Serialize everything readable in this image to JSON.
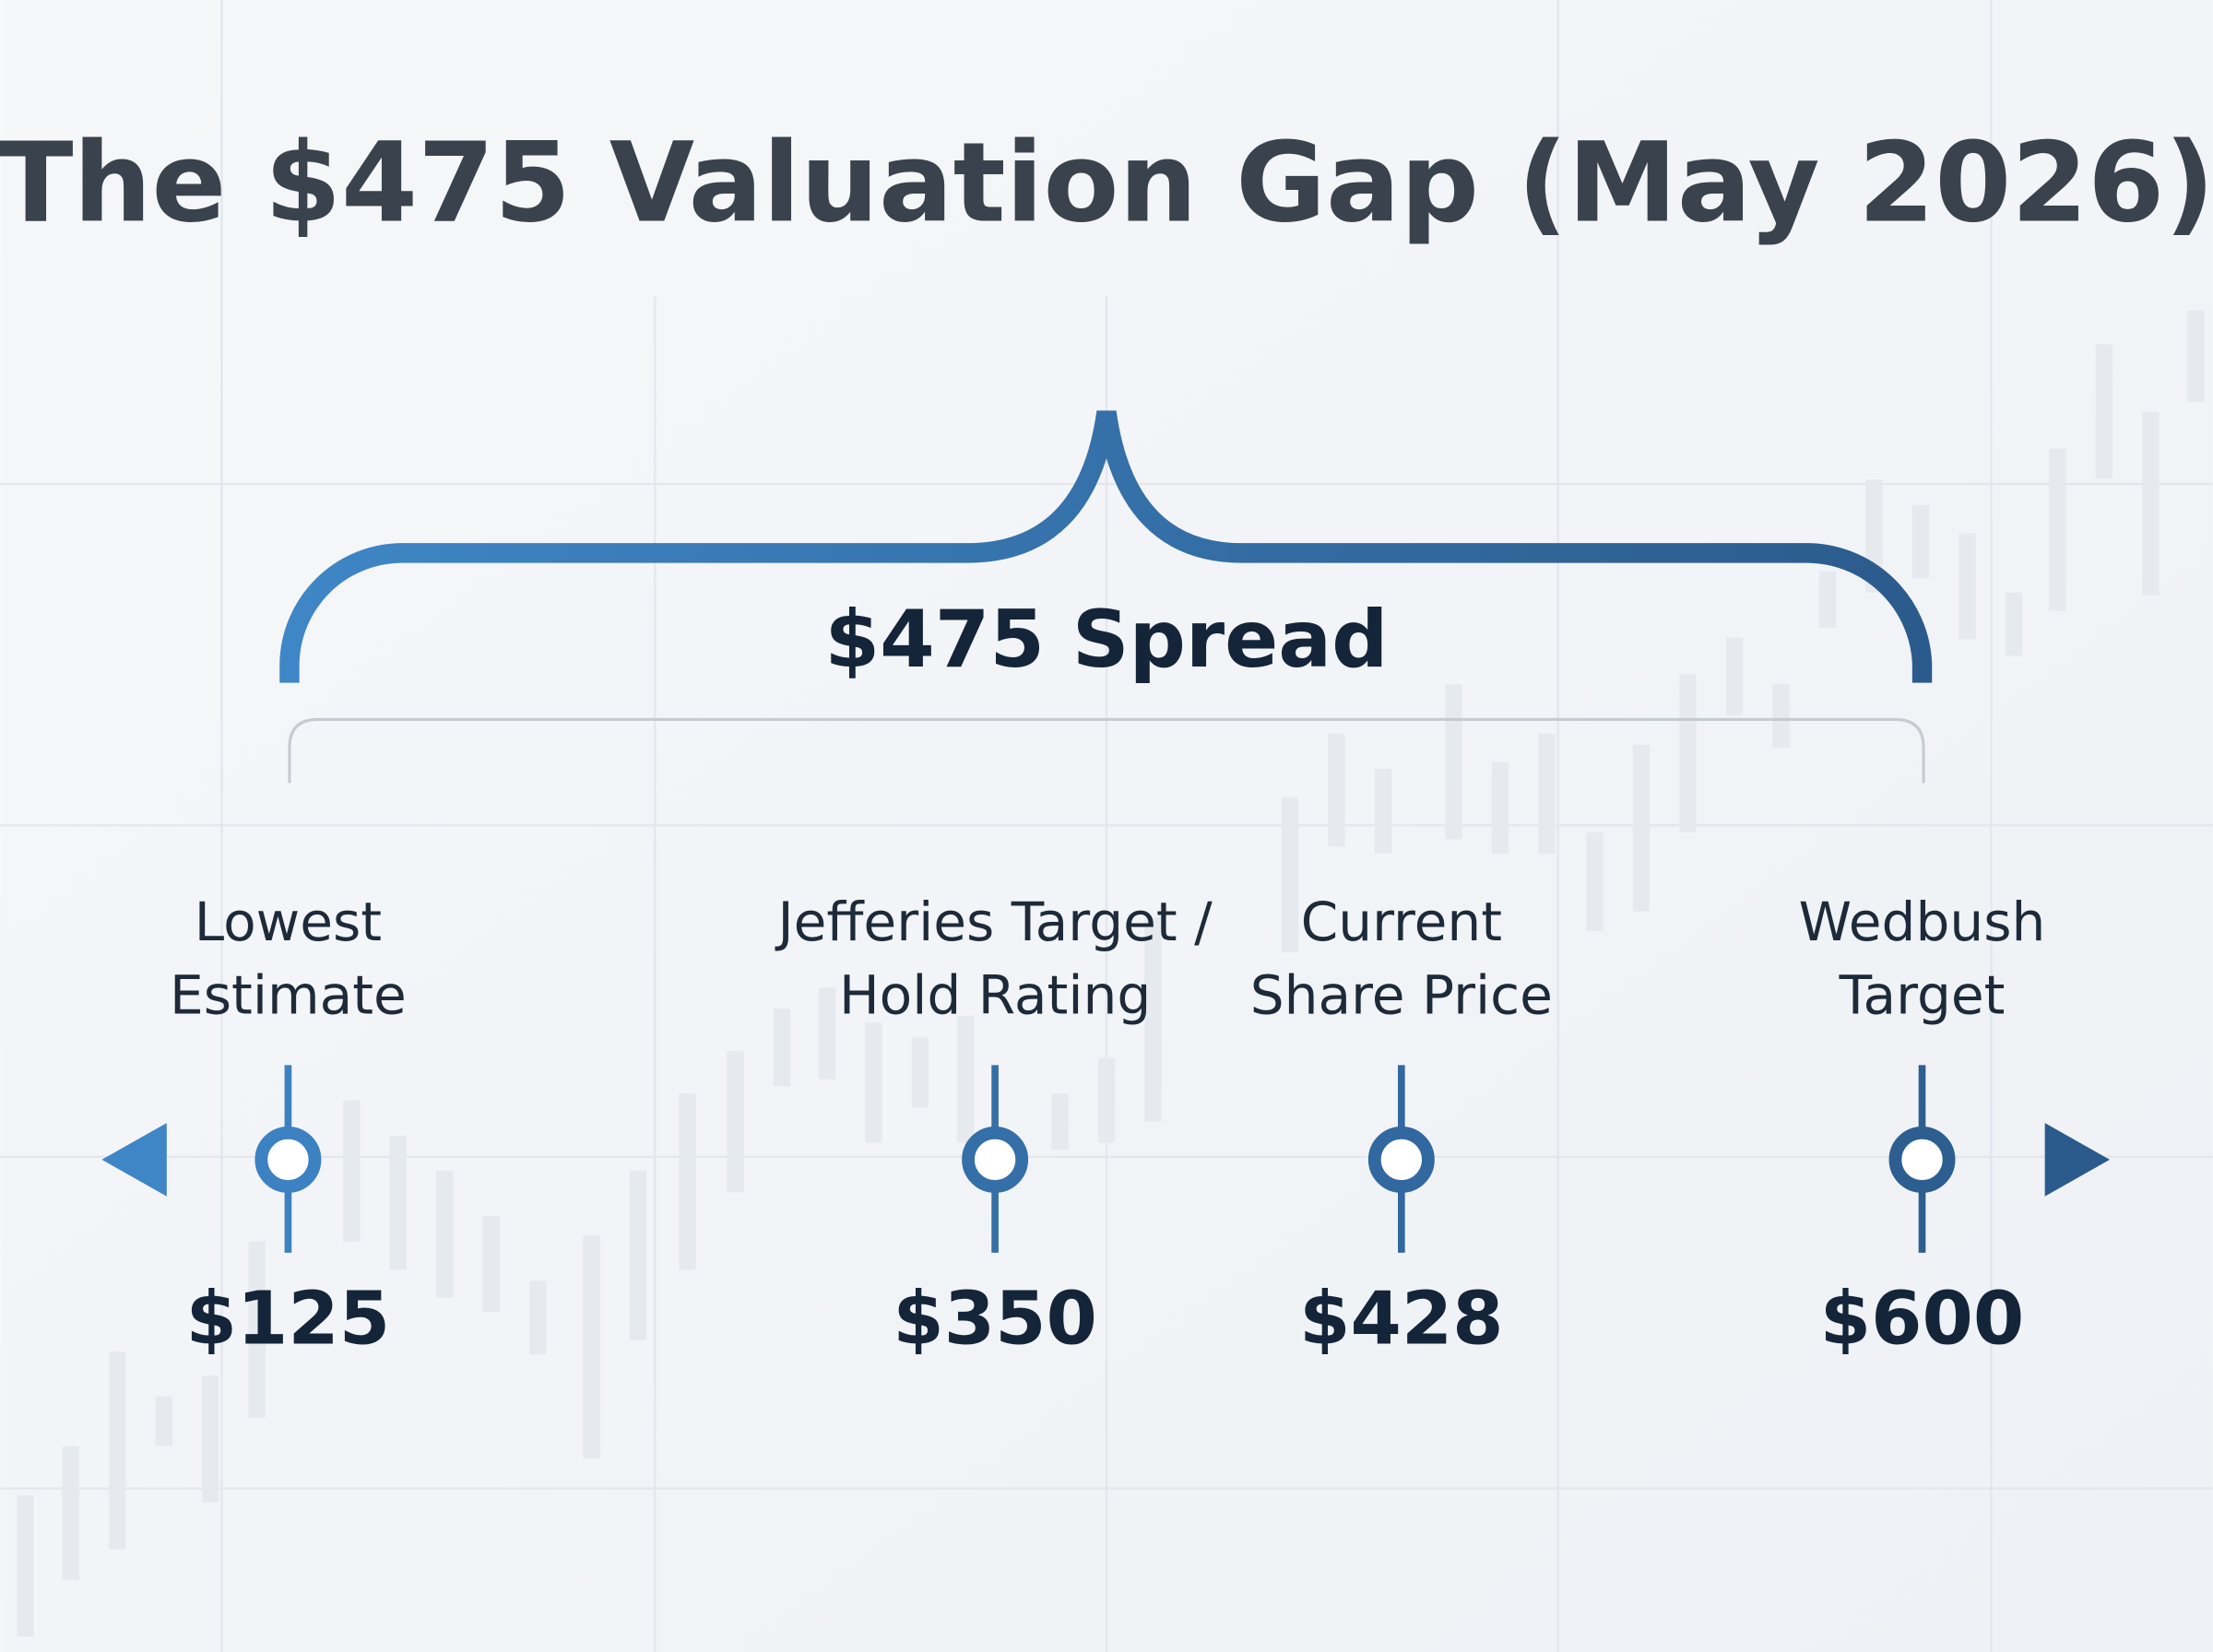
{
  "title": "The $475 Valuation Gap (May 2026)",
  "spread_label": "$475 Spread",
  "points": [
    {
      "label": [
        "Lowest",
        "Estimate"
      ],
      "value": "$125"
    },
    {
      "label": [
        "Jefferies Target /",
        "Hold Rating"
      ],
      "value": "$350"
    },
    {
      "label": [
        "Current",
        "Share Price"
      ],
      "value": "$428"
    },
    {
      "label": [
        "Wedbush",
        "Target"
      ],
      "value": "$600"
    }
  ]
}
